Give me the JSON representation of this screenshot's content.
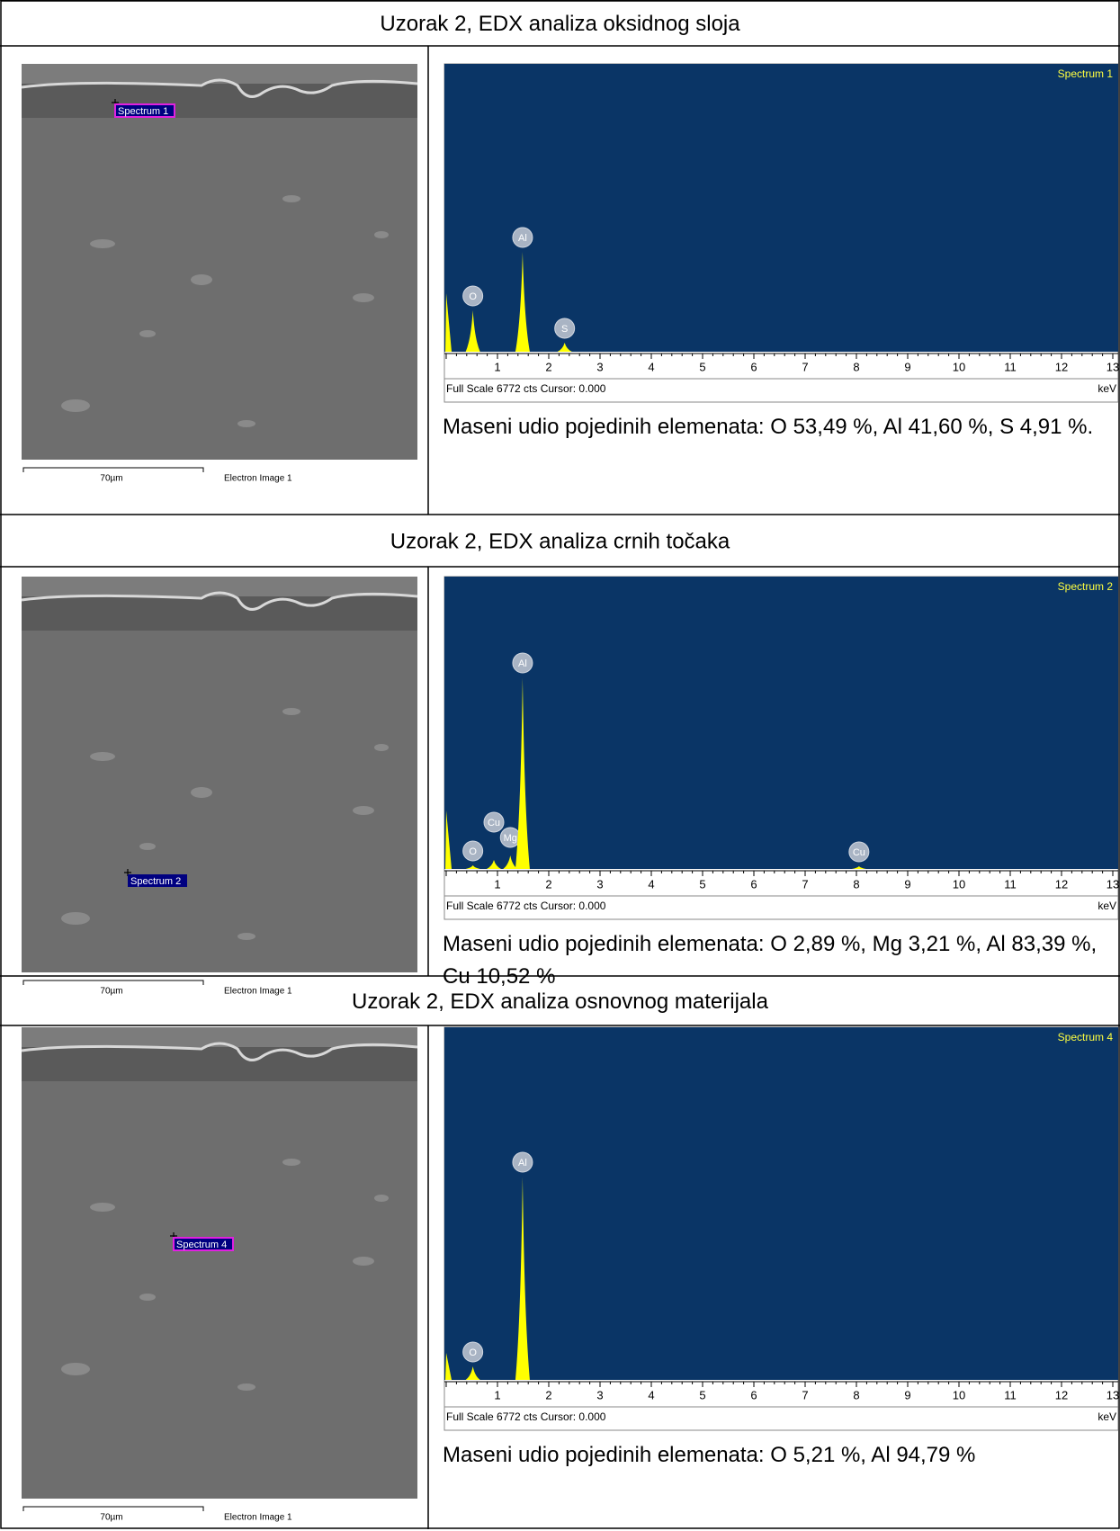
{
  "sections": [
    {
      "title": "Uzorak 2, EDX analiza oksidnog sloja",
      "image": {
        "marker": "Spectrum 1",
        "scale_bar": "70µm",
        "label": "Electron Image 1"
      },
      "spectrum": {
        "label": "Spectrum 1",
        "peaks": [
          "O",
          "Al",
          "S"
        ],
        "axis_ticks": [
          1,
          2,
          3,
          4,
          5,
          6,
          7,
          8,
          9,
          10,
          11,
          12,
          13
        ],
        "footer": "Full Scale 6772 cts Cursor: 0.000",
        "unit": "keV"
      },
      "caption": "Maseni udio pojedinih elemenata: O 53,49 %, Al 41,60 %, S 4,91 %."
    },
    {
      "title": "Uzorak 2, EDX analiza crnih točaka",
      "image": {
        "marker": "Spectrum 2",
        "scale_bar": "70µm",
        "label": "Electron Image 1"
      },
      "spectrum": {
        "label": "Spectrum 2",
        "peaks": [
          "O",
          "Cu",
          "Mg",
          "Al",
          "Cu"
        ],
        "axis_ticks": [
          1,
          2,
          3,
          4,
          5,
          6,
          7,
          8,
          9,
          10,
          11,
          12,
          13
        ],
        "footer": "Full Scale 6772 cts Cursor: 0.000",
        "unit": "keV"
      },
      "caption": "Maseni udio pojedinih elemenata: O 2,89 %, Mg 3,21 %, Al 83,39 %, Cu 10,52 %"
    },
    {
      "title": "Uzorak 2, EDX analiza osnovnog materijala",
      "image": {
        "marker": "Spectrum 4",
        "scale_bar": "70µm",
        "label": "Electron Image 1"
      },
      "spectrum": {
        "label": "Spectrum 4",
        "peaks": [
          "O",
          "Al"
        ],
        "axis_ticks": [
          1,
          2,
          3,
          4,
          5,
          6,
          7,
          8,
          9,
          10,
          11,
          12,
          13
        ],
        "footer": "Full Scale 6772 cts Cursor: 0.000",
        "unit": "keV"
      },
      "caption": "Maseni udio pojedinih elemenata: O 5,21 %, Al 94,79 %"
    }
  ]
}
